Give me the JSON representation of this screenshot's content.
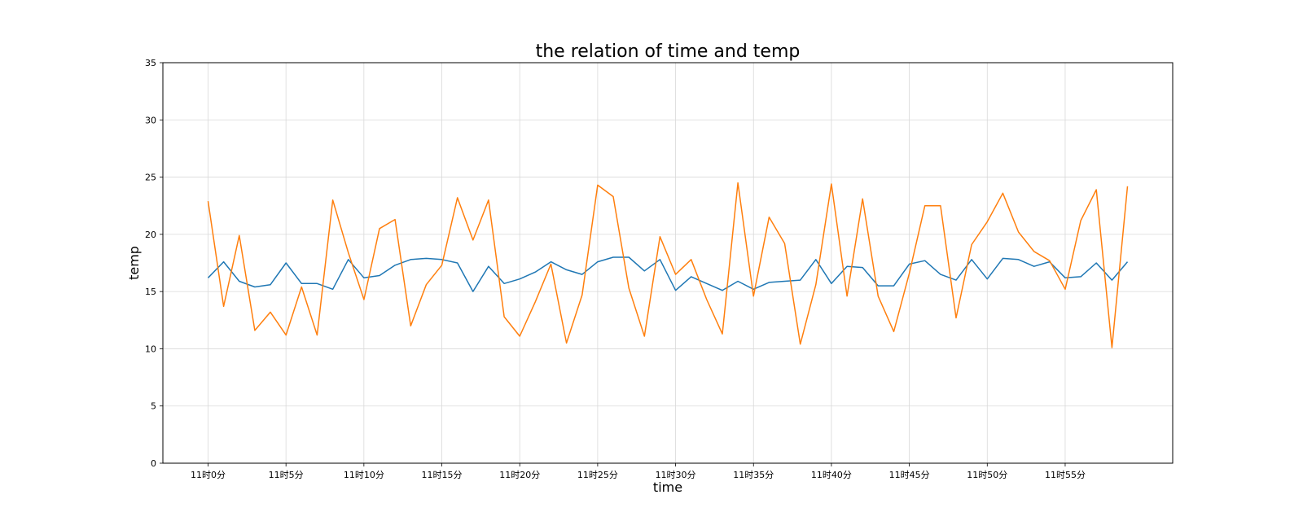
{
  "chart_data": {
    "type": "line",
    "title": "the relation of time and temp",
    "xlabel": "time",
    "ylabel": "temp",
    "ylim": [
      0,
      35
    ],
    "yticks": [
      0,
      5,
      10,
      15,
      20,
      25,
      30,
      35
    ],
    "xlim": [
      -2.9,
      61.9
    ],
    "x": [
      0,
      1,
      2,
      3,
      4,
      5,
      6,
      7,
      8,
      9,
      10,
      11,
      12,
      13,
      14,
      15,
      16,
      17,
      18,
      19,
      20,
      21,
      22,
      23,
      24,
      25,
      26,
      27,
      28,
      29,
      30,
      31,
      32,
      33,
      34,
      35,
      36,
      37,
      38,
      39,
      40,
      41,
      42,
      43,
      44,
      45,
      46,
      47,
      48,
      49,
      50,
      51,
      52,
      53,
      54,
      55,
      56,
      57,
      58,
      59
    ],
    "xticks": [
      0,
      5,
      10,
      15,
      20,
      25,
      30,
      35,
      40,
      45,
      50,
      55
    ],
    "xtick_labels": [
      "11时0分",
      "11时5分",
      "11时10分",
      "11时15分",
      "11时20分",
      "11时25分",
      "11时30分",
      "11时35分",
      "11时40分",
      "11时45分",
      "11时50分",
      "11时55分"
    ],
    "grid": true,
    "series": [
      {
        "color": "#1f77b4",
        "values": [
          16.2,
          17.6,
          15.9,
          15.4,
          15.6,
          17.5,
          15.7,
          15.7,
          15.2,
          17.8,
          16.2,
          16.4,
          17.3,
          17.8,
          17.9,
          17.8,
          17.5,
          15.0,
          17.2,
          15.7,
          16.1,
          16.7,
          17.6,
          16.9,
          16.5,
          17.6,
          18.0,
          18.0,
          16.8,
          17.8,
          15.1,
          16.3,
          15.7,
          15.1,
          15.9,
          15.2,
          15.8,
          15.9,
          16.0,
          17.8,
          15.7,
          17.2,
          17.1,
          15.5,
          15.5,
          17.4,
          17.7,
          16.5,
          16.0,
          17.8,
          16.1,
          17.9,
          17.8,
          17.2,
          17.6,
          16.2,
          16.3,
          17.5,
          16.0,
          17.6
        ]
      },
      {
        "color": "#ff7f0e",
        "values": [
          22.9,
          13.7,
          19.9,
          11.6,
          13.2,
          11.2,
          15.4,
          11.2,
          23.0,
          18.4,
          14.3,
          20.5,
          21.3,
          12.0,
          15.6,
          17.3,
          23.2,
          19.5,
          23.0,
          12.8,
          11.1,
          14.1,
          17.4,
          10.5,
          14.7,
          24.3,
          23.3,
          15.3,
          11.1,
          19.8,
          16.5,
          17.8,
          14.3,
          11.3,
          24.5,
          14.6,
          21.5,
          19.2,
          10.4,
          15.6,
          24.4,
          14.6,
          23.1,
          14.6,
          11.5,
          16.6,
          22.5,
          22.5,
          12.7,
          19.1,
          21.1,
          23.6,
          20.2,
          18.5,
          17.7,
          15.2,
          21.2,
          23.9,
          10.1,
          24.2
        ]
      }
    ]
  }
}
